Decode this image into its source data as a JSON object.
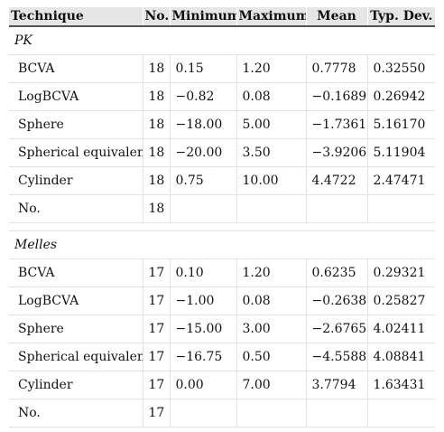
{
  "table": {
    "headers": [
      "Technique",
      "No.",
      "Minimum",
      "Maximum",
      "Mean",
      "Typ. Dev."
    ],
    "groups": [
      {
        "name": "PK",
        "rows": [
          [
            "BCVA",
            "18",
            "0.15",
            "1.20",
            "0.7778",
            "0.32550"
          ],
          [
            "LogBCVA",
            "18",
            "−0.82",
            "0.08",
            "−0.1689",
            "0.26942"
          ],
          [
            "Sphere",
            "18",
            "−18.00",
            "5.00",
            "−1.7361",
            "5.16170"
          ],
          [
            "Spherical equivalent",
            "18",
            "−20.00",
            "3.50",
            "−3.9206",
            "5.11904"
          ],
          [
            "Cylinder",
            "18",
            "0.75",
            "10.00",
            "4.4722",
            "2.47471"
          ],
          [
            "No.",
            "18",
            "",
            "",
            "",
            ""
          ]
        ]
      },
      {
        "name": "Melles",
        "rows": [
          [
            "BCVA",
            "17",
            "0.10",
            "1.20",
            "0.6235",
            "0.29321"
          ],
          [
            "LogBCVA",
            "17",
            "−1.00",
            "0.08",
            "−0.2638",
            "0.25827"
          ],
          [
            "Sphere",
            "17",
            "−15.00",
            "3.00",
            "−2.6765",
            "4.02411"
          ],
          [
            "Spherical equivalent",
            "17",
            "−16.75",
            "0.50",
            "−4.5588",
            "4.08841"
          ],
          [
            "Cylinder",
            "17",
            "0.00",
            "7.00",
            "3.7794",
            "1.63431"
          ],
          [
            "No.",
            "17",
            "",
            "",
            "",
            ""
          ]
        ]
      }
    ]
  }
}
